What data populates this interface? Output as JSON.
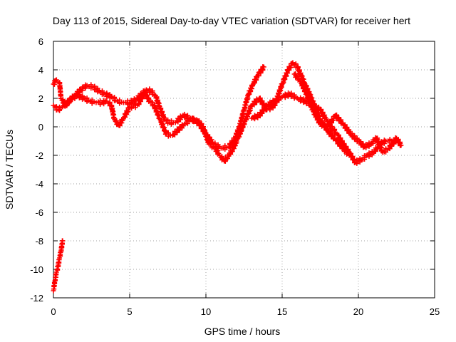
{
  "chart_data": {
    "type": "scatter",
    "title": "Day 113 of 2015, Sidereal Day-to-day VTEC variation (SDTVAR) for receiver hert",
    "xlabel": "GPS time / hours",
    "ylabel": "SDTVAR / TECUs",
    "xlim": [
      0,
      25
    ],
    "ylim": [
      -12,
      6
    ],
    "xticks": [
      0,
      5,
      10,
      15,
      20,
      25
    ],
    "yticks": [
      -12,
      -10,
      -8,
      -6,
      -4,
      -2,
      0,
      2,
      4,
      6
    ],
    "grid": true,
    "marker": "+",
    "color": "#ff0000",
    "series": [
      {
        "name": "main track",
        "points": [
          [
            0.0,
            1.5
          ],
          [
            0.3,
            1.2
          ],
          [
            0.6,
            1.4
          ],
          [
            1.0,
            1.8
          ],
          [
            1.4,
            2.2
          ],
          [
            1.8,
            2.6
          ],
          [
            2.2,
            2.9
          ],
          [
            2.6,
            2.8
          ],
          [
            3.0,
            2.5
          ],
          [
            3.4,
            2.3
          ],
          [
            3.8,
            2.1
          ],
          [
            4.2,
            1.8
          ],
          [
            4.6,
            1.7
          ],
          [
            5.0,
            1.7
          ],
          [
            5.4,
            1.9
          ],
          [
            5.8,
            2.3
          ],
          [
            6.1,
            2.6
          ],
          [
            6.4,
            2.5
          ],
          [
            6.7,
            2.2
          ],
          [
            7.0,
            1.3
          ],
          [
            7.3,
            0.5
          ],
          [
            7.6,
            0.3
          ],
          [
            8.0,
            0.3
          ],
          [
            8.5,
            0.8
          ],
          [
            9.0,
            0.6
          ],
          [
            9.5,
            0.3
          ],
          [
            10.0,
            -0.5
          ],
          [
            10.5,
            -1.2
          ],
          [
            11.0,
            -1.5
          ],
          [
            11.5,
            -1.4
          ],
          [
            11.9,
            -0.8
          ],
          [
            12.2,
            0.0
          ],
          [
            12.5,
            1.2
          ],
          [
            12.8,
            2.3
          ],
          [
            13.1,
            3.0
          ],
          [
            13.4,
            3.6
          ],
          [
            13.8,
            4.2
          ]
        ]
      },
      {
        "name": "secondary track",
        "points": [
          [
            0.0,
            3.0
          ],
          [
            0.2,
            3.3
          ],
          [
            0.4,
            3.1
          ],
          [
            0.5,
            2.0
          ],
          [
            0.8,
            1.5
          ],
          [
            1.2,
            2.0
          ],
          [
            1.6,
            2.2
          ],
          [
            2.0,
            2.0
          ],
          [
            2.4,
            1.8
          ],
          [
            2.8,
            1.7
          ],
          [
            3.2,
            1.7
          ],
          [
            3.5,
            1.8
          ],
          [
            3.8,
            1.5
          ],
          [
            4.0,
            0.5
          ],
          [
            4.3,
            0.1
          ],
          [
            4.6,
            0.6
          ],
          [
            5.0,
            1.4
          ],
          [
            5.5,
            1.5
          ],
          [
            6.0,
            2.4
          ],
          [
            6.3,
            1.8
          ],
          [
            6.6,
            1.5
          ],
          [
            7.0,
            0.5
          ],
          [
            7.4,
            -0.5
          ],
          [
            7.8,
            -0.6
          ],
          [
            8.2,
            -0.2
          ],
          [
            8.6,
            0.2
          ],
          [
            9.0,
            0.5
          ],
          [
            9.4,
            0.5
          ],
          [
            9.8,
            0.0
          ],
          [
            10.2,
            -1.2
          ],
          [
            10.6,
            -1.5
          ],
          [
            10.9,
            -2.0
          ],
          [
            11.2,
            -2.4
          ],
          [
            11.5,
            -2.0
          ],
          [
            11.8,
            -1.5
          ],
          [
            12.1,
            -0.8
          ],
          [
            12.6,
            0.5
          ],
          [
            13.0,
            1.5
          ],
          [
            13.5,
            2.0
          ],
          [
            14.0,
            1.2
          ],
          [
            14.5,
            1.5
          ],
          [
            15.0,
            3.0
          ],
          [
            15.4,
            4.0
          ],
          [
            15.7,
            4.5
          ],
          [
            16.0,
            4.2
          ],
          [
            16.5,
            3.0
          ],
          [
            17.0,
            1.8
          ],
          [
            17.5,
            0.5
          ],
          [
            18.0,
            -0.3
          ],
          [
            18.5,
            -0.9
          ],
          [
            19.0,
            -1.5
          ],
          [
            19.4,
            -2.0
          ]
        ]
      },
      {
        "name": "third track",
        "points": [
          [
            13.0,
            0.6
          ],
          [
            13.5,
            0.8
          ],
          [
            14.0,
            1.5
          ],
          [
            14.5,
            1.8
          ],
          [
            15.0,
            2.1
          ],
          [
            15.5,
            2.3
          ],
          [
            16.0,
            2.0
          ],
          [
            16.5,
            1.8
          ],
          [
            17.0,
            1.5
          ],
          [
            17.5,
            1.2
          ],
          [
            17.9,
            0.5
          ],
          [
            18.2,
            0.0
          ],
          [
            18.6,
            -0.5
          ],
          [
            19.0,
            -1.2
          ],
          [
            19.4,
            -1.8
          ],
          [
            19.8,
            -2.5
          ],
          [
            20.2,
            -2.3
          ],
          [
            20.6,
            -2.0
          ],
          [
            21.0,
            -1.8
          ],
          [
            21.4,
            -1.2
          ],
          [
            21.8,
            -1.0
          ],
          [
            22.2,
            -1.0
          ],
          [
            22.6,
            -1.1
          ]
        ]
      },
      {
        "name": "fourth track",
        "points": [
          [
            15.8,
            3.7
          ],
          [
            16.2,
            3.2
          ],
          [
            16.6,
            2.3
          ],
          [
            17.0,
            1.2
          ],
          [
            17.5,
            0.2
          ],
          [
            18.0,
            0.0
          ],
          [
            18.5,
            0.8
          ],
          [
            19.0,
            0.2
          ],
          [
            19.5,
            -0.5
          ],
          [
            20.0,
            -1.0
          ],
          [
            20.4,
            -1.4
          ],
          [
            20.8,
            -1.2
          ],
          [
            21.2,
            -0.8
          ],
          [
            21.6,
            -1.8
          ],
          [
            22.0,
            -1.5
          ],
          [
            22.5,
            -0.8
          ],
          [
            22.8,
            -1.3
          ]
        ]
      },
      {
        "name": "early offset track",
        "points": [
          [
            0.0,
            -11.5
          ],
          [
            0.1,
            -10.8
          ],
          [
            0.2,
            -10.2
          ],
          [
            0.3,
            -9.8
          ],
          [
            0.4,
            -9.2
          ],
          [
            0.5,
            -8.7
          ],
          [
            0.6,
            -8.0
          ]
        ]
      }
    ]
  }
}
